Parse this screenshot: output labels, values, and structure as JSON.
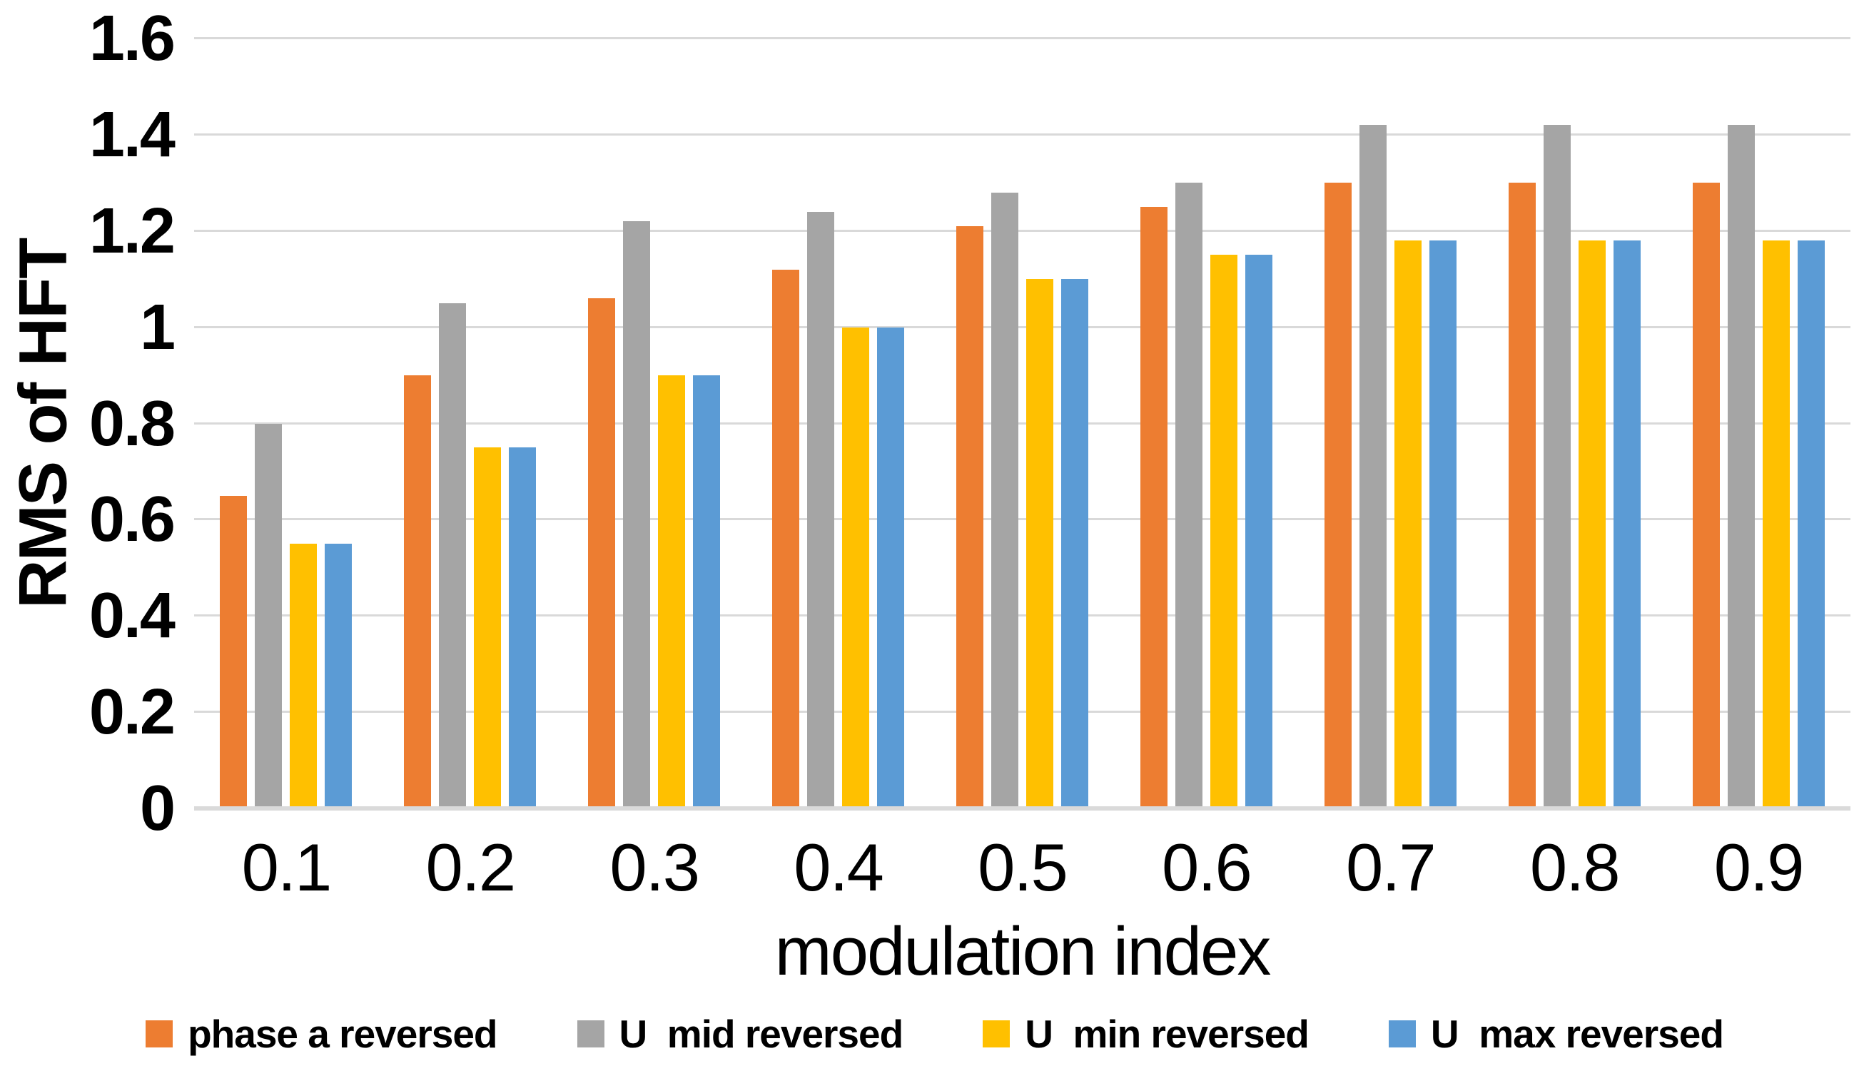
{
  "chart_data": {
    "type": "bar",
    "title": "",
    "xlabel": "modulation index",
    "ylabel": "RMS of HFT",
    "categories": [
      "0.1",
      "0.2",
      "0.3",
      "0.4",
      "0.5",
      "0.6",
      "0.7",
      "0.8",
      "0.9"
    ],
    "series": [
      {
        "name": "phase a reversed",
        "color": "#ED7D31",
        "values": [
          0.65,
          0.9,
          1.06,
          1.12,
          1.21,
          1.25,
          1.3,
          1.3,
          1.3
        ]
      },
      {
        "name": "U  mid reversed",
        "color": "#A5A5A5",
        "values": [
          0.8,
          1.05,
          1.22,
          1.24,
          1.28,
          1.3,
          1.42,
          1.42,
          1.42
        ]
      },
      {
        "name": "U  min reversed",
        "color": "#FFC000",
        "values": [
          0.55,
          0.75,
          0.9,
          1.0,
          1.1,
          1.15,
          1.18,
          1.18,
          1.18
        ]
      },
      {
        "name": "U  max reversed",
        "color": "#5B9BD5",
        "values": [
          0.55,
          0.75,
          0.9,
          1.0,
          1.1,
          1.15,
          1.18,
          1.18,
          1.18
        ]
      }
    ],
    "ylim": [
      0,
      1.6
    ],
    "ytick_step": 0.2,
    "ytick_labels": [
      "0",
      "0.2",
      "0.4",
      "0.6",
      "0.8",
      "1",
      "1.2",
      "1.4",
      "1.6"
    ],
    "grid": true,
    "gridline_color": "#D9D9D9",
    "axis_line_color": "#DADADA",
    "legend_position": "bottom"
  }
}
